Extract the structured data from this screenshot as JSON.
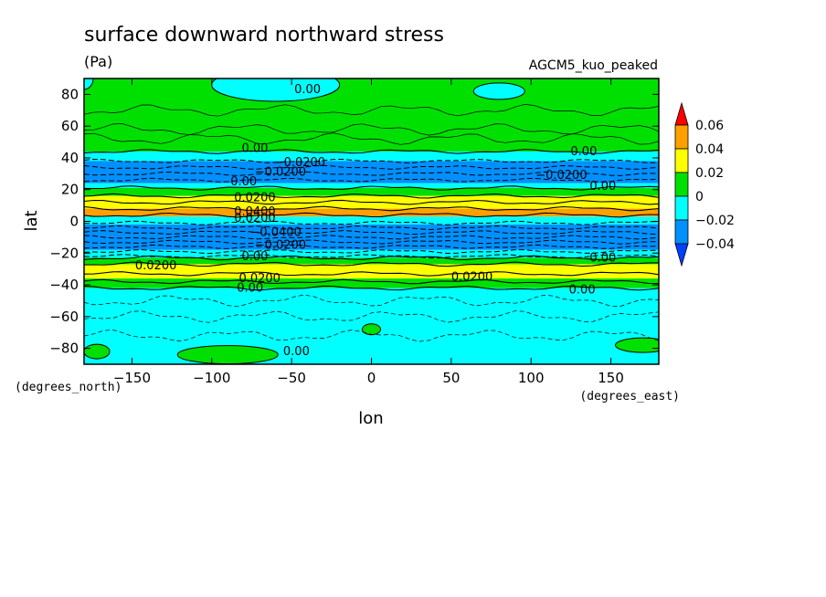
{
  "chart_data": {
    "type": "heatmap",
    "title": "surface downward northward stress",
    "units": "(Pa)",
    "model": "AGCM5_kuo_peaked",
    "xlabel": "lon",
    "ylabel": "lat",
    "x_units": "(degrees_east)",
    "y_units": "(degrees_north)",
    "xlim": [
      -180,
      180
    ],
    "ylim": [
      -90,
      90
    ],
    "x_ticks": [
      -150,
      -100,
      -50,
      0,
      50,
      100,
      150
    ],
    "y_ticks": [
      80,
      60,
      40,
      20,
      0,
      -20,
      -40,
      -60,
      -80
    ],
    "colorbar": {
      "levels": [
        0.06,
        0.04,
        0.02,
        0,
        -0.02,
        -0.04
      ],
      "labels": [
        "0.06",
        "0.04",
        "0.02",
        "0",
        "−0.02",
        "−0.04"
      ],
      "colors": [
        "#ff0000",
        "#ffa000",
        "#ffff00",
        "#00e000",
        "#00ffff",
        "#0090ff",
        "#0040ff"
      ]
    },
    "bands": [
      {
        "lat_top": 90,
        "lat_bottom": 44,
        "level": "0 to 0.02",
        "color": "#00e000"
      },
      {
        "lat_top": 44,
        "lat_bottom": 38,
        "level": "-0.02 to 0",
        "color": "#00ffff"
      },
      {
        "lat_top": 38,
        "lat_bottom": 24,
        "level": "-0.04 to -0.02",
        "color": "#0090ff"
      },
      {
        "lat_top": 24,
        "lat_bottom": 21,
        "level": "-0.02 to 0",
        "color": "#00ffff"
      },
      {
        "lat_top": 21,
        "lat_bottom": 16,
        "level": "0 to 0.02",
        "color": "#00e000"
      },
      {
        "lat_top": 16,
        "lat_bottom": 8,
        "level": "0.02 to 0.04",
        "color": "#ffff00"
      },
      {
        "lat_top": 8,
        "lat_bottom": 3,
        "level": "0.04 to 0.06",
        "color": "#ffa000"
      },
      {
        "lat_top": 3,
        "lat_bottom": -2,
        "level": "-0.02 to 0",
        "color": "#00ffff"
      },
      {
        "lat_top": -2,
        "lat_bottom": -18,
        "level": "-0.04 to -0.02",
        "color": "#0090ff"
      },
      {
        "lat_top": -18,
        "lat_bottom": -23,
        "level": "-0.02 to 0",
        "color": "#00ffff"
      },
      {
        "lat_top": -23,
        "lat_bottom": -27,
        "level": "0 to 0.02",
        "color": "#00e000"
      },
      {
        "lat_top": -27,
        "lat_bottom": -36,
        "level": "0.02 to 0.04",
        "color": "#ffff00"
      },
      {
        "lat_top": -36,
        "lat_bottom": -42,
        "level": "0 to 0.02",
        "color": "#00e000"
      },
      {
        "lat_top": -42,
        "lat_bottom": -90,
        "level": "-0.02 to 0",
        "color": "#00ffff"
      }
    ],
    "contour_labels": [
      {
        "lon": -40,
        "lat": 83,
        "text": "0.00"
      },
      {
        "lon": -73,
        "lat": 46,
        "text": "0.00"
      },
      {
        "lon": -45,
        "lat": 37,
        "text": "−0.0200"
      },
      {
        "lon": -57,
        "lat": 31,
        "text": "−0.0200"
      },
      {
        "lon": -80,
        "lat": 25,
        "text": "0.00"
      },
      {
        "lon": -73,
        "lat": 15,
        "text": "0.0200"
      },
      {
        "lon": -73,
        "lat": 6,
        "text": "0.0400"
      },
      {
        "lon": -73,
        "lat": 2,
        "text": "0.0200"
      },
      {
        "lon": -60,
        "lat": -7,
        "text": "−0.0400"
      },
      {
        "lon": -57,
        "lat": -15,
        "text": "−0.0200"
      },
      {
        "lon": -73,
        "lat": -22,
        "text": "0.00"
      },
      {
        "lon": -135,
        "lat": -28,
        "text": "0.0200"
      },
      {
        "lon": -70,
        "lat": -36,
        "text": "0.0200"
      },
      {
        "lon": -76,
        "lat": -42,
        "text": "0.00"
      },
      {
        "lon": 63,
        "lat": -35,
        "text": "0.0200"
      },
      {
        "lon": 133,
        "lat": 44,
        "text": "0.00"
      },
      {
        "lon": 119,
        "lat": 29,
        "text": "−0.0200"
      },
      {
        "lon": 145,
        "lat": 22,
        "text": "0.00"
      },
      {
        "lon": 145,
        "lat": -23,
        "text": "0.00"
      },
      {
        "lon": 132,
        "lat": -43,
        "text": "0.00"
      },
      {
        "lon": -47,
        "lat": -82,
        "text": "0.00"
      }
    ],
    "dashed_contour_lats": [
      38,
      34,
      30,
      26,
      -1,
      -4,
      -7,
      -10,
      -13,
      -16,
      -19,
      -22
    ],
    "solid_contour_lats": [
      44,
      21,
      16,
      12,
      8,
      4,
      -23,
      -27,
      -33,
      -38,
      -42
    ],
    "grid": false
  }
}
